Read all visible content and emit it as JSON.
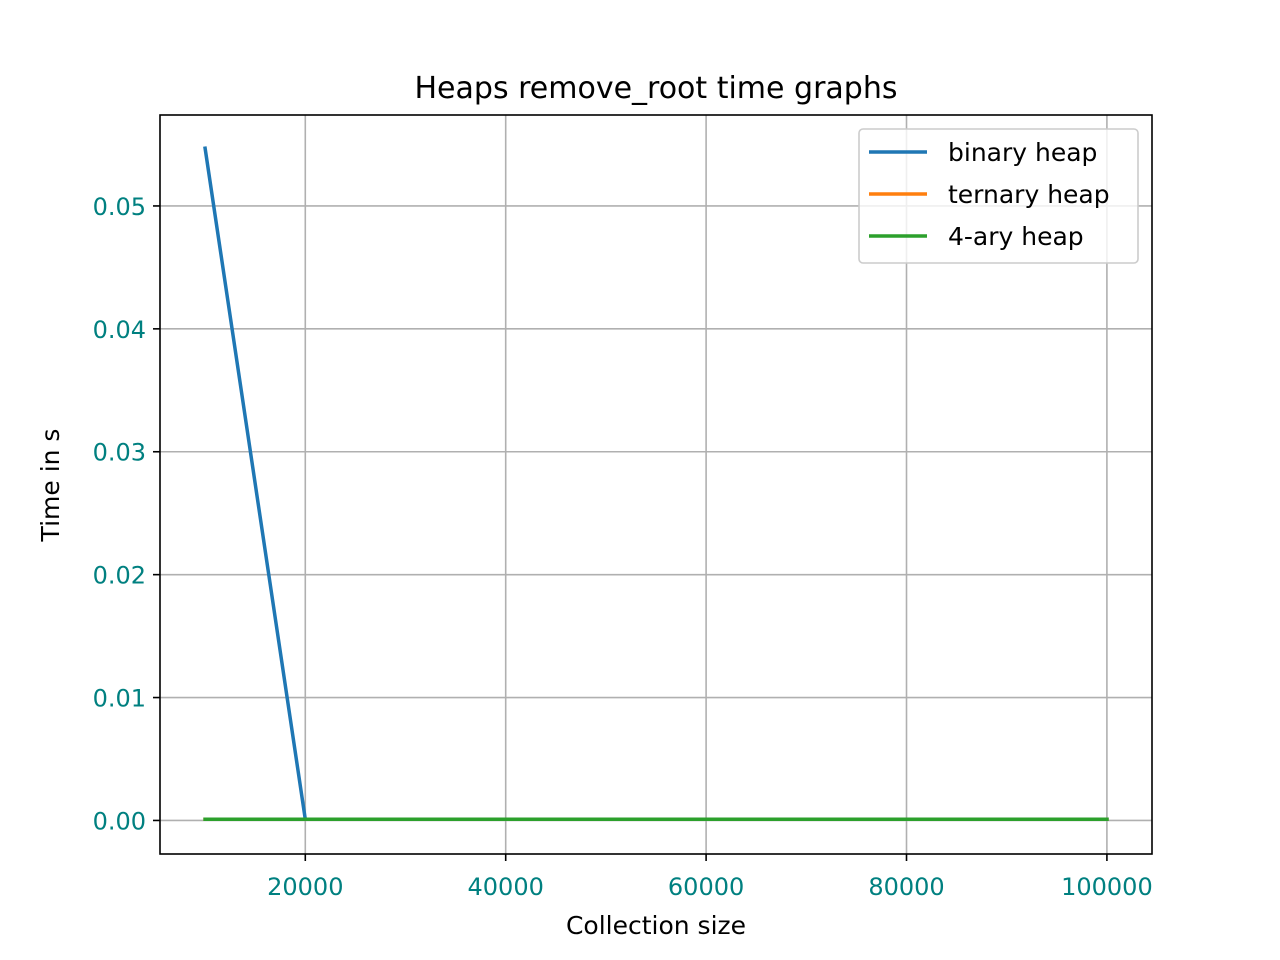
{
  "chart_data": {
    "type": "line",
    "title": "Heaps remove_root time graphs",
    "xlabel": "Collection size",
    "ylabel": "Time in s",
    "x": [
      10000,
      20000,
      30000,
      40000,
      50000,
      60000,
      70000,
      80000,
      90000,
      100000
    ],
    "series": [
      {
        "name": "binary heap",
        "color": "#1f77b4",
        "values": [
          0.0547,
          0.0001,
          0.0001,
          0.0001,
          0.0001,
          0.0001,
          0.0001,
          0.0001,
          0.0001,
          0.0001
        ]
      },
      {
        "name": "ternary heap",
        "color": "#ff7f0e",
        "values": [
          0.0001,
          0.0001,
          0.0001,
          0.0001,
          0.0001,
          0.0001,
          0.0001,
          0.0001,
          0.0001,
          0.0001
        ]
      },
      {
        "name": "4-ary heap",
        "color": "#2ca02c",
        "values": [
          0.0001,
          0.0001,
          0.0001,
          0.0001,
          0.0001,
          0.0001,
          0.0001,
          0.0001,
          0.0001,
          0.0001
        ]
      }
    ],
    "xticks": [
      20000,
      40000,
      60000,
      80000,
      100000
    ],
    "xtick_labels": [
      "20000",
      "40000",
      "60000",
      "80000",
      "100000"
    ],
    "yticks": [
      0.0,
      0.01,
      0.02,
      0.03,
      0.04,
      0.05
    ],
    "ytick_labels": [
      "0.00",
      "0.01",
      "0.02",
      "0.03",
      "0.04",
      "0.05"
    ],
    "xlim": [
      5500,
      104500
    ],
    "ylim": [
      -0.00273,
      0.0574
    ],
    "grid": true,
    "legend_position": "upper right",
    "tick_label_color": "#008080"
  }
}
